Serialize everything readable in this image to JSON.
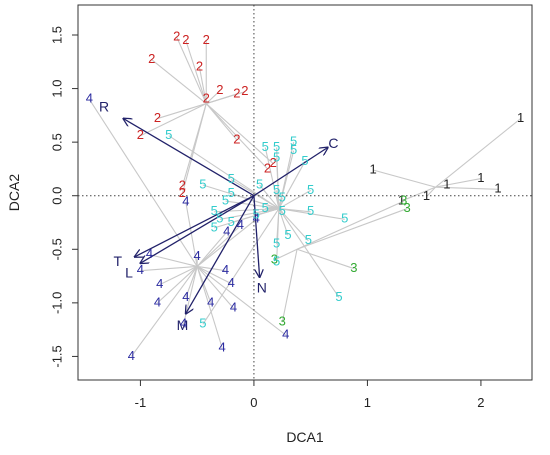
{
  "chart_data": {
    "type": "scatter",
    "title": "",
    "xlabel": "DCA1",
    "ylabel": "DCA2",
    "xlim": [
      -1.55,
      2.45
    ],
    "ylim": [
      -1.72,
      1.78
    ],
    "xticks": [
      -1,
      0,
      1,
      2
    ],
    "yticks": [
      -1.5,
      -1.0,
      -0.5,
      0.0,
      0.5,
      1.0,
      1.5
    ],
    "xtick_labels": [
      "-1",
      "0",
      "1",
      "2"
    ],
    "ytick_labels": [
      "-1.5",
      "-1.0",
      "-0.5",
      "0.0",
      "0.5",
      "1.0",
      "1.5"
    ],
    "grid": false,
    "zero_lines": true,
    "series": [
      {
        "label": "1",
        "color": "#222222",
        "centroid": [
          1.6,
          0.08
        ],
        "points": [
          [
            2.35,
            0.72
          ],
          [
            1.05,
            0.24
          ],
          [
            1.7,
            0.1
          ],
          [
            2.0,
            0.16
          ],
          [
            2.15,
            0.06
          ],
          [
            1.52,
            -0.01
          ],
          [
            1.3,
            -0.05
          ]
        ]
      },
      {
        "label": "2",
        "color": "#cc2222",
        "centroid": [
          -0.42,
          0.86
        ],
        "points": [
          [
            -0.68,
            1.48
          ],
          [
            -0.6,
            1.45
          ],
          [
            -0.42,
            1.45
          ],
          [
            -0.9,
            1.27
          ],
          [
            -0.48,
            1.2
          ],
          [
            -0.08,
            0.97
          ],
          [
            -0.3,
            0.98
          ],
          [
            -0.15,
            0.95
          ],
          [
            -0.42,
            0.9
          ],
          [
            -0.85,
            0.72
          ],
          [
            -1.0,
            0.56
          ],
          [
            -0.15,
            0.52
          ],
          [
            0.12,
            0.25
          ],
          [
            0.17,
            0.3
          ],
          [
            -0.63,
            0.09
          ],
          [
            -0.63,
            0.02
          ]
        ]
      },
      {
        "label": "3",
        "color": "#33aa33",
        "centroid": [
          0.38,
          -0.5
        ],
        "points": [
          [
            1.32,
            -0.05
          ],
          [
            1.35,
            -0.12
          ],
          [
            0.18,
            -0.6
          ],
          [
            0.88,
            -0.68
          ],
          [
            0.25,
            -1.18
          ]
        ]
      },
      {
        "label": "4",
        "color": "#2a2aa0",
        "centroid": [
          -0.5,
          -0.66
        ],
        "points": [
          [
            -1.45,
            0.9
          ],
          [
            -0.6,
            -0.06
          ],
          [
            0.02,
            -0.22
          ],
          [
            -0.12,
            -0.28
          ],
          [
            -0.24,
            -0.34
          ],
          [
            -0.92,
            -0.55
          ],
          [
            -0.5,
            -0.57
          ],
          [
            -1.0,
            -0.7
          ],
          [
            -0.83,
            -0.83
          ],
          [
            -0.25,
            -0.7
          ],
          [
            -0.2,
            -0.82
          ],
          [
            -0.6,
            -0.95
          ],
          [
            -0.85,
            -1.0
          ],
          [
            -0.38,
            -1.0
          ],
          [
            -0.62,
            -1.2
          ],
          [
            -0.18,
            -1.05
          ],
          [
            0.28,
            -1.3
          ],
          [
            -0.28,
            -1.42
          ],
          [
            -1.08,
            -1.5
          ]
        ]
      },
      {
        "label": "5",
        "color": "#33cccc",
        "centroid": [
          0.22,
          -0.12
        ],
        "points": [
          [
            -0.75,
            0.56
          ],
          [
            -0.45,
            0.1
          ],
          [
            -0.2,
            0.15
          ],
          [
            0.05,
            0.1
          ],
          [
            0.1,
            0.45
          ],
          [
            0.2,
            0.35
          ],
          [
            0.2,
            0.45
          ],
          [
            0.35,
            0.5
          ],
          [
            0.35,
            0.42
          ],
          [
            0.45,
            0.32
          ],
          [
            0.5,
            0.05
          ],
          [
            0.2,
            0.05
          ],
          [
            0.25,
            -0.02
          ],
          [
            -0.2,
            0.02
          ],
          [
            -0.25,
            -0.05
          ],
          [
            -0.35,
            -0.15
          ],
          [
            -0.3,
            -0.22
          ],
          [
            -0.35,
            -0.3
          ],
          [
            -0.2,
            -0.25
          ],
          [
            0.1,
            -0.12
          ],
          [
            0.25,
            -0.15
          ],
          [
            0.5,
            -0.15
          ],
          [
            0.3,
            -0.37
          ],
          [
            0.48,
            -0.42
          ],
          [
            0.8,
            -0.22
          ],
          [
            0.2,
            -0.45
          ],
          [
            0.2,
            -0.62
          ],
          [
            0.75,
            -0.95
          ],
          [
            -0.45,
            -1.2
          ],
          [
            0.02,
            -0.18
          ]
        ]
      }
    ],
    "vectors": [
      {
        "label": "R",
        "end": [
          -1.15,
          0.72
        ],
        "label_pos": [
          -1.32,
          0.82
        ]
      },
      {
        "label": "C",
        "end": [
          0.65,
          0.45
        ],
        "label_pos": [
          0.7,
          0.48
        ]
      },
      {
        "label": "T",
        "end": [
          -1.05,
          -0.57
        ],
        "label_pos": [
          -1.2,
          -0.62
        ]
      },
      {
        "label": "L",
        "end": [
          -1.0,
          -0.63
        ],
        "label_pos": [
          -1.1,
          -0.73
        ]
      },
      {
        "label": "N",
        "end": [
          0.05,
          -0.76
        ],
        "label_pos": [
          0.07,
          -0.87
        ]
      },
      {
        "label": "M",
        "end": [
          -0.6,
          -1.1
        ],
        "label_pos": [
          -0.63,
          -1.22
        ]
      }
    ]
  }
}
